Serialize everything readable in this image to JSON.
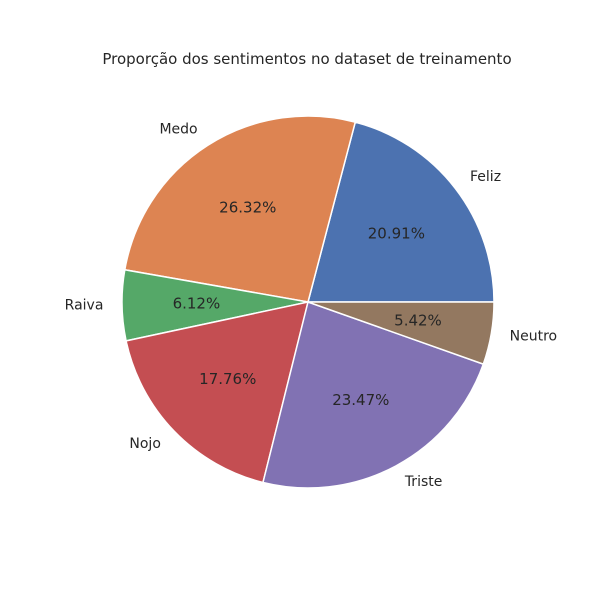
{
  "chart_data": {
    "type": "pie",
    "title": "Proporção dos sentimentos no dataset de treinamento",
    "categories": [
      "Feliz",
      "Medo",
      "Raiva",
      "Nojo",
      "Triste",
      "Neutro"
    ],
    "values": [
      20.91,
      26.32,
      6.12,
      17.76,
      23.47,
      5.42
    ],
    "value_labels": [
      "20.91%",
      "26.32%",
      "6.12%",
      "17.76%",
      "23.47%",
      "5.42%"
    ],
    "colors": [
      "#4c72b0",
      "#dd8452",
      "#55a868",
      "#c44e52",
      "#8172b3",
      "#937860"
    ],
    "start_angle_deg": 0,
    "direction": "counterclockwise"
  }
}
